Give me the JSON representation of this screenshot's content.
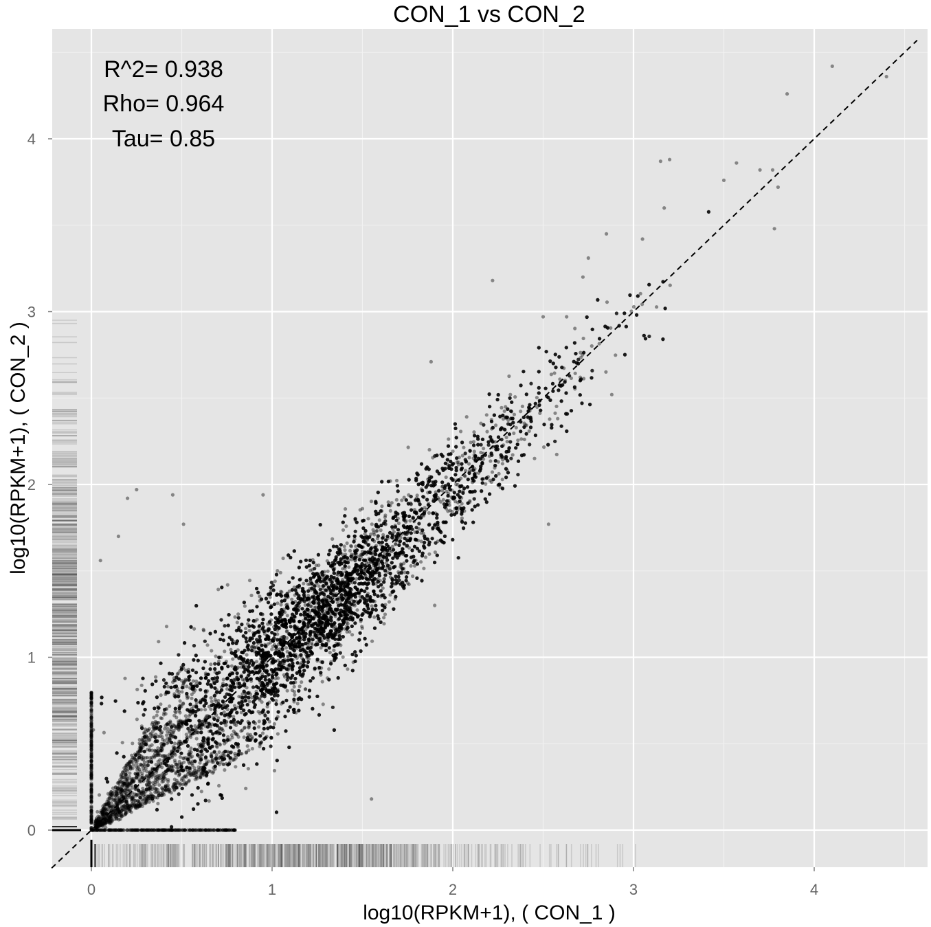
{
  "chart_data": {
    "type": "scatter",
    "title": "CON_1  vs  CON_2",
    "xlabel": "log10(RPKM+1),  ( CON_1 )",
    "ylabel": "log10(RPKM+1),  ( CON_2 )",
    "xlim": [
      -0.22,
      4.6
    ],
    "ylim": [
      -0.22,
      4.65
    ],
    "x_ticks": [
      "0",
      "1",
      "2",
      "3",
      "4"
    ],
    "y_ticks": [
      "0",
      "1",
      "2",
      "3",
      "4"
    ],
    "grid": true,
    "reference_line": {
      "style": "dashed",
      "slope": 1,
      "intercept": 0
    },
    "annotations": [
      "R^2= 0.938",
      "Rho= 0.964",
      "Tau= 0.85"
    ],
    "marginal_rugs": [
      "x",
      "y"
    ],
    "outlier_points": [
      [
        4.1,
        4.42
      ],
      [
        4.4,
        4.36
      ],
      [
        3.85,
        4.26
      ],
      [
        3.15,
        3.87
      ],
      [
        3.2,
        3.88
      ],
      [
        3.5,
        3.76
      ],
      [
        3.57,
        3.86
      ],
      [
        3.77,
        3.82
      ],
      [
        3.78,
        3.48
      ],
      [
        3.8,
        3.72
      ],
      [
        3.05,
        3.42
      ],
      [
        3.17,
        3.6
      ],
      [
        3.7,
        3.82
      ],
      [
        2.85,
        3.45
      ],
      [
        2.75,
        3.31
      ],
      [
        2.72,
        3.2
      ],
      [
        2.22,
        3.18
      ],
      [
        2.5,
        2.97
      ],
      [
        2.63,
        2.97
      ],
      [
        1.88,
        2.71
      ],
      [
        2.88,
        2.52
      ],
      [
        2.53,
        1.77
      ],
      [
        1.5,
        1.86
      ],
      [
        0.25,
        1.97
      ],
      [
        0.45,
        1.94
      ],
      [
        0.2,
        1.92
      ],
      [
        0.15,
        1.7
      ],
      [
        0.05,
        1.56
      ],
      [
        0.51,
        1.77
      ],
      [
        1.9,
        1.3
      ],
      [
        1.55,
        0.18
      ],
      [
        0.95,
        1.94
      ]
    ]
  }
}
